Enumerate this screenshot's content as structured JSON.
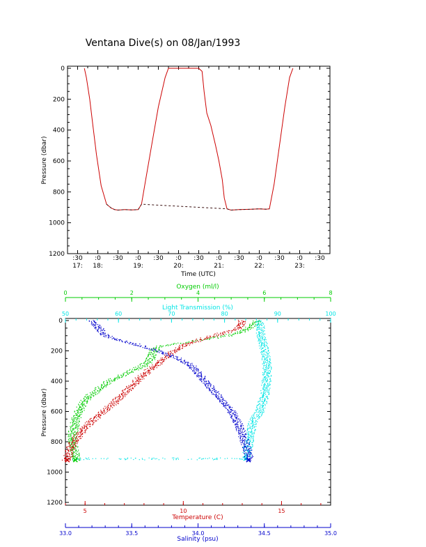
{
  "title": "Ventana Dive(s) on 08/Jan/1993",
  "chart_data": [
    {
      "type": "line",
      "xlabel": "Time (UTC)",
      "ylabel": "Pressure (dbar)",
      "xlim": [
        "17:15",
        "23:45"
      ],
      "ylim": [
        1200,
        0
      ],
      "y_ticks": [
        0,
        200,
        400,
        600,
        800,
        1000,
        1200
      ],
      "x_ticks": [
        {
          "minute": ":30",
          "hour": "17:"
        },
        {
          "minute": ":0",
          "hour": "18:"
        },
        {
          "minute": ":30",
          "hour": ""
        },
        {
          "minute": ":0",
          "hour": "19:"
        },
        {
          "minute": ":30",
          "hour": ""
        },
        {
          "minute": ":0",
          "hour": "20:"
        },
        {
          "minute": ":30",
          "hour": ""
        },
        {
          "minute": ":0",
          "hour": "21:"
        },
        {
          "minute": ":30",
          "hour": ""
        },
        {
          "minute": ":0",
          "hour": "22:"
        },
        {
          "minute": ":30",
          "hour": ""
        },
        {
          "minute": ":0",
          "hour": "23:"
        },
        {
          "minute": ":30",
          "hour": ""
        }
      ],
      "series": [
        {
          "color": "#cc0000",
          "x": [
            "17:40",
            "17:43",
            "17:48",
            "17:53",
            "17:58",
            "18:05",
            "18:13",
            "18:20",
            "18:25",
            "18:30",
            "18:40",
            "18:50",
            "19:00",
            "19:05",
            "19:10",
            "19:20",
            "19:30",
            "19:40",
            "19:45",
            "19:48",
            "20:00",
            "20:15",
            "20:30",
            "20:35",
            "20:38",
            "20:42",
            "20:48",
            "20:55",
            "21:00",
            "21:05",
            "21:08",
            "21:12",
            "21:18",
            "21:30",
            "21:45",
            "22:00",
            "22:10",
            "22:15",
            "22:22",
            "22:30",
            "22:38",
            "22:45",
            "22:50"
          ],
          "y": [
            0,
            60,
            200,
            380,
            560,
            760,
            880,
            905,
            915,
            918,
            915,
            917,
            915,
            880,
            750,
            500,
            250,
            60,
            0,
            0,
            0,
            0,
            0,
            20,
            150,
            290,
            370,
            500,
            600,
            720,
            840,
            910,
            918,
            915,
            913,
            910,
            912,
            910,
            750,
            500,
            250,
            60,
            0
          ]
        }
      ]
    },
    {
      "type": "scatter",
      "ylabel": "Pressure (dbar)",
      "ylim": [
        1200,
        0
      ],
      "y_ticks": [
        0,
        200,
        400,
        600,
        800,
        1000,
        1200
      ],
      "axes": {
        "oxygen": {
          "label": "Oxygen (ml/l)",
          "range": [
            0,
            8
          ],
          "ticks": [
            0,
            2,
            4,
            6,
            8
          ],
          "color": "#00cc00",
          "position": "top"
        },
        "light_transmission": {
          "label": "Light Transmission (%)",
          "range": [
            50,
            100
          ],
          "ticks": [
            50,
            60,
            70,
            80,
            90,
            100
          ],
          "color": "#00e5e5",
          "position": "top"
        },
        "temperature": {
          "label": "Temperature (C)",
          "range": [
            4,
            17.5
          ],
          "ticks": [
            5,
            10,
            15
          ],
          "color": "#cc0000",
          "position": "bottom"
        },
        "salinity": {
          "label": "Salinity (psu)",
          "range": [
            33.0,
            35.0
          ],
          "ticks": [
            "33.0",
            "33.5",
            "34.0",
            "34.5",
            "35.0"
          ],
          "color": "#0000cc",
          "position": "bottom"
        }
      },
      "series": [
        {
          "axis": "oxygen",
          "color": "#00cc00",
          "pressure": [
            0,
            20,
            50,
            80,
            100,
            130,
            150,
            170,
            190,
            210,
            240,
            270,
            300,
            350,
            400,
            450,
            500,
            550,
            600,
            650,
            700,
            750,
            800,
            850,
            900,
            920
          ],
          "values": [
            5.8,
            5.7,
            5.5,
            5.2,
            4.8,
            4.0,
            3.3,
            2.8,
            2.7,
            2.6,
            2.6,
            2.5,
            2.3,
            1.8,
            1.3,
            1.0,
            0.7,
            0.5,
            0.4,
            0.3,
            0.25,
            0.2,
            0.2,
            0.25,
            0.3,
            0.3
          ]
        },
        {
          "axis": "light_transmission",
          "color": "#00e5e5",
          "pressure": [
            0,
            100,
            200,
            300,
            400,
            500,
            600,
            650,
            700,
            750,
            800,
            850,
            900,
            910
          ],
          "values": [
            86.5,
            86.8,
            87.5,
            88.0,
            87.8,
            87.5,
            86.5,
            85.5,
            85.0,
            84.8,
            84.5,
            84.3,
            84.0,
            50.5
          ]
        },
        {
          "axis": "temperature",
          "color": "#cc0000",
          "pressure": [
            0,
            50,
            100,
            150,
            200,
            250,
            300,
            350,
            400,
            450,
            500,
            550,
            600,
            650,
            700,
            750,
            800,
            850,
            900,
            920
          ],
          "values": [
            13.0,
            12.8,
            11.5,
            10.2,
            9.5,
            9.0,
            8.5,
            8.0,
            7.6,
            7.2,
            6.8,
            6.4,
            5.9,
            5.4,
            5.0,
            4.7,
            4.4,
            4.2,
            4.1,
            4.0
          ]
        },
        {
          "axis": "salinity",
          "color": "#0000cc",
          "pressure": [
            0,
            50,
            100,
            150,
            200,
            250,
            300,
            350,
            400,
            450,
            500,
            550,
            600,
            650,
            700,
            750,
            800,
            850,
            900,
            920
          ],
          "values": [
            33.2,
            33.25,
            33.3,
            33.5,
            33.7,
            33.85,
            33.95,
            34.0,
            34.05,
            34.1,
            34.15,
            34.2,
            34.25,
            34.28,
            34.31,
            34.33,
            34.35,
            34.37,
            34.38,
            34.38
          ]
        }
      ]
    }
  ]
}
